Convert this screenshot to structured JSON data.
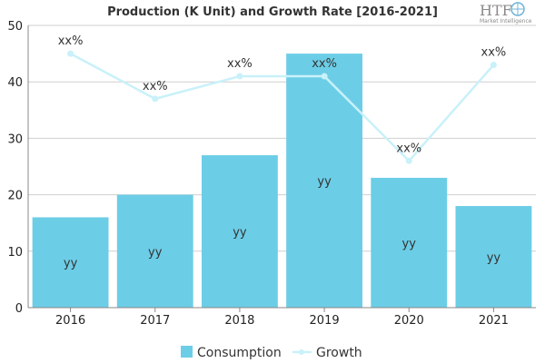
{
  "chart_data": {
    "type": "bar",
    "title": "Production (K Unit) and Growth Rate [2016-2021]",
    "categories": [
      "2016",
      "2017",
      "2018",
      "2019",
      "2020",
      "2021"
    ],
    "series": [
      {
        "name": "Consumption",
        "type": "bar",
        "values": [
          16,
          20,
          27,
          45,
          23,
          18
        ],
        "data_labels": [
          "yy",
          "yy",
          "yy",
          "yy",
          "yy",
          "yy"
        ]
      },
      {
        "name": "Growth",
        "type": "line",
        "values": [
          45,
          37,
          41,
          41,
          26,
          43
        ],
        "data_labels": [
          "xx%",
          "xx%",
          "xx%",
          "xx%",
          "xx%",
          "xx%"
        ]
      }
    ],
    "y_ticks": [
      "0",
      "10",
      "20",
      "30",
      "40",
      "50"
    ],
    "ylim": [
      0,
      50
    ],
    "grid": true,
    "legend_position": "bottom-center"
  },
  "colors": {
    "bar": "#6ccde6",
    "line": "#c9f1f9",
    "grid": "#cfcfcf",
    "axis": "#888888"
  },
  "logo": {
    "name": "HTF",
    "tagline": "Market Intelligence"
  }
}
